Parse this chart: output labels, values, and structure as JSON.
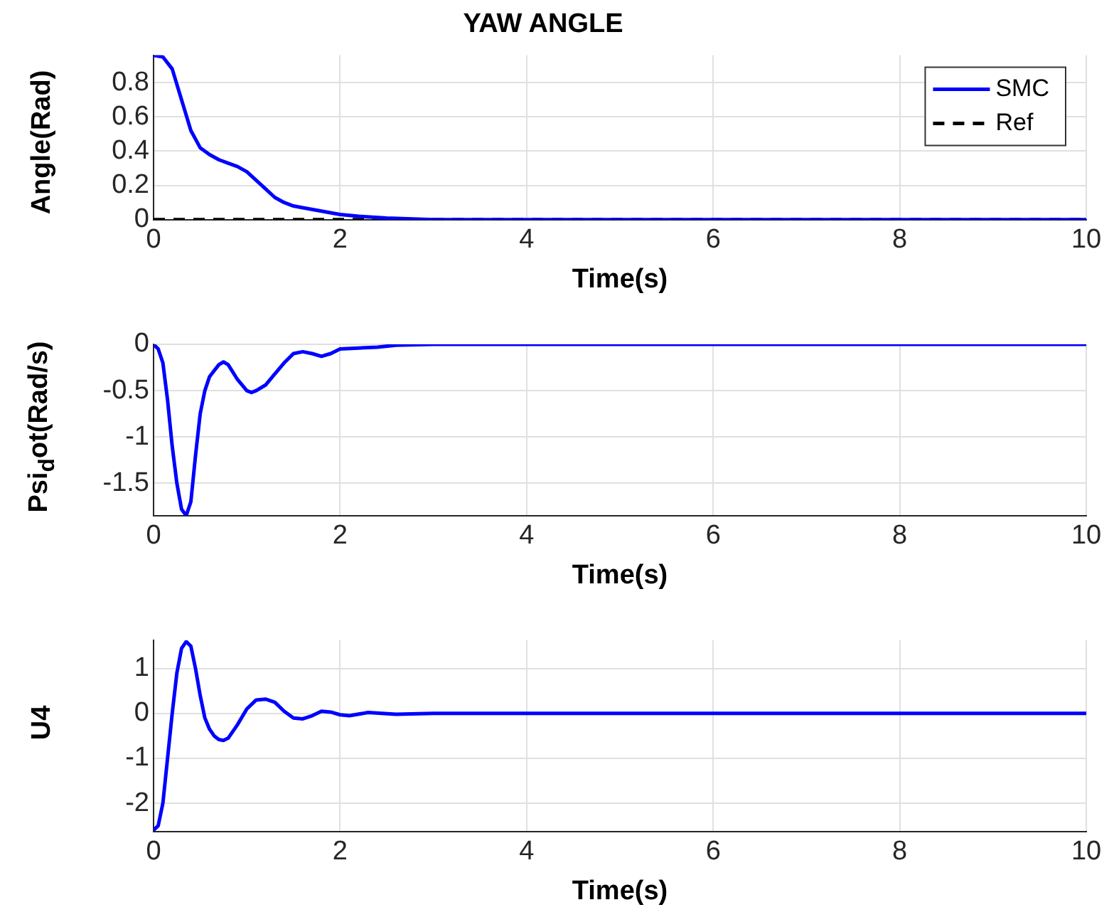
{
  "chart_data": [
    {
      "type": "line",
      "title": "YAW ANGLE",
      "xlabel": "Time(s)",
      "ylabel": "Angle(Rad)",
      "xlim": [
        0,
        10
      ],
      "xticks": [
        0,
        2,
        4,
        6,
        8,
        10
      ],
      "ylim": [
        0,
        0.96
      ],
      "yticks": [
        0,
        0.2,
        0.4,
        0.6,
        0.8
      ],
      "grid": true,
      "legend": "top right",
      "marker": "none",
      "series": [
        {
          "name": "SMC",
          "color": "#0000ff",
          "line_style": "solid",
          "x": [
            0,
            0.1,
            0.2,
            0.3,
            0.4,
            0.5,
            0.6,
            0.7,
            0.8,
            0.9,
            1.0,
            1.1,
            1.2,
            1.3,
            1.4,
            1.5,
            1.6,
            1.8,
            2.0,
            2.2,
            2.5,
            3,
            10
          ],
          "values": [
            0.96,
            0.95,
            0.88,
            0.7,
            0.52,
            0.42,
            0.38,
            0.35,
            0.33,
            0.31,
            0.28,
            0.23,
            0.18,
            0.13,
            0.1,
            0.08,
            0.07,
            0.05,
            0.03,
            0.02,
            0.01,
            0,
            0
          ]
        },
        {
          "name": "Ref",
          "color": "#000000",
          "line_style": "dashed",
          "x": [
            0,
            10
          ],
          "values": [
            0,
            0
          ]
        }
      ]
    },
    {
      "type": "line",
      "xlabel": "Time(s)",
      "ylabel": "Psi$_{d}$ot(Rad/s)",
      "xlim": [
        0,
        10
      ],
      "xticks": [
        0,
        2,
        4,
        6,
        8,
        10
      ],
      "ylim": [
        -1.85,
        0
      ],
      "yticks": [
        -1.5,
        -1,
        -0.5,
        0
      ],
      "grid": true,
      "marker": "none",
      "series": [
        {
          "color": "#0000ff",
          "line_style": "solid",
          "x": [
            0,
            0.05,
            0.1,
            0.15,
            0.2,
            0.25,
            0.3,
            0.35,
            0.4,
            0.45,
            0.5,
            0.55,
            0.6,
            0.7,
            0.75,
            0.8,
            0.9,
            1.0,
            1.05,
            1.1,
            1.2,
            1.3,
            1.4,
            1.5,
            1.6,
            1.7,
            1.8,
            1.9,
            2.0,
            2.2,
            2.4,
            2.6,
            3,
            4,
            10
          ],
          "values": [
            0,
            -0.05,
            -0.2,
            -0.6,
            -1.1,
            -1.5,
            -1.78,
            -1.85,
            -1.7,
            -1.2,
            -0.75,
            -0.5,
            -0.35,
            -0.22,
            -0.19,
            -0.22,
            -0.38,
            -0.5,
            -0.52,
            -0.5,
            -0.44,
            -0.32,
            -0.2,
            -0.1,
            -0.08,
            -0.1,
            -0.13,
            -0.1,
            -0.05,
            -0.04,
            -0.03,
            -0.01,
            0,
            0,
            0
          ]
        }
      ]
    },
    {
      "type": "line",
      "xlabel": "Time(s)",
      "ylabel": "U4",
      "xlim": [
        0,
        10
      ],
      "xticks": [
        0,
        2,
        4,
        6,
        8,
        10
      ],
      "ylim": [
        -2.63,
        1.63
      ],
      "yticks": [
        -2,
        -1,
        0,
        1
      ],
      "grid": true,
      "marker": "none",
      "series": [
        {
          "color": "#0000ff",
          "line_style": "solid",
          "x": [
            0,
            0.05,
            0.1,
            0.15,
            0.2,
            0.25,
            0.3,
            0.35,
            0.4,
            0.45,
            0.5,
            0.55,
            0.6,
            0.65,
            0.7,
            0.75,
            0.8,
            0.9,
            1.0,
            1.1,
            1.2,
            1.3,
            1.4,
            1.5,
            1.6,
            1.7,
            1.8,
            1.9,
            2.0,
            2.1,
            2.3,
            2.6,
            3.0,
            10
          ],
          "values": [
            -2.6,
            -2.5,
            -2.0,
            -1.0,
            0.0,
            0.9,
            1.45,
            1.6,
            1.5,
            1.0,
            0.4,
            -0.1,
            -0.35,
            -0.5,
            -0.58,
            -0.6,
            -0.55,
            -0.25,
            0.1,
            0.3,
            0.32,
            0.25,
            0.05,
            -0.1,
            -0.12,
            -0.05,
            0.05,
            0.03,
            -0.03,
            -0.05,
            0.02,
            -0.02,
            0,
            0
          ]
        }
      ]
    }
  ]
}
